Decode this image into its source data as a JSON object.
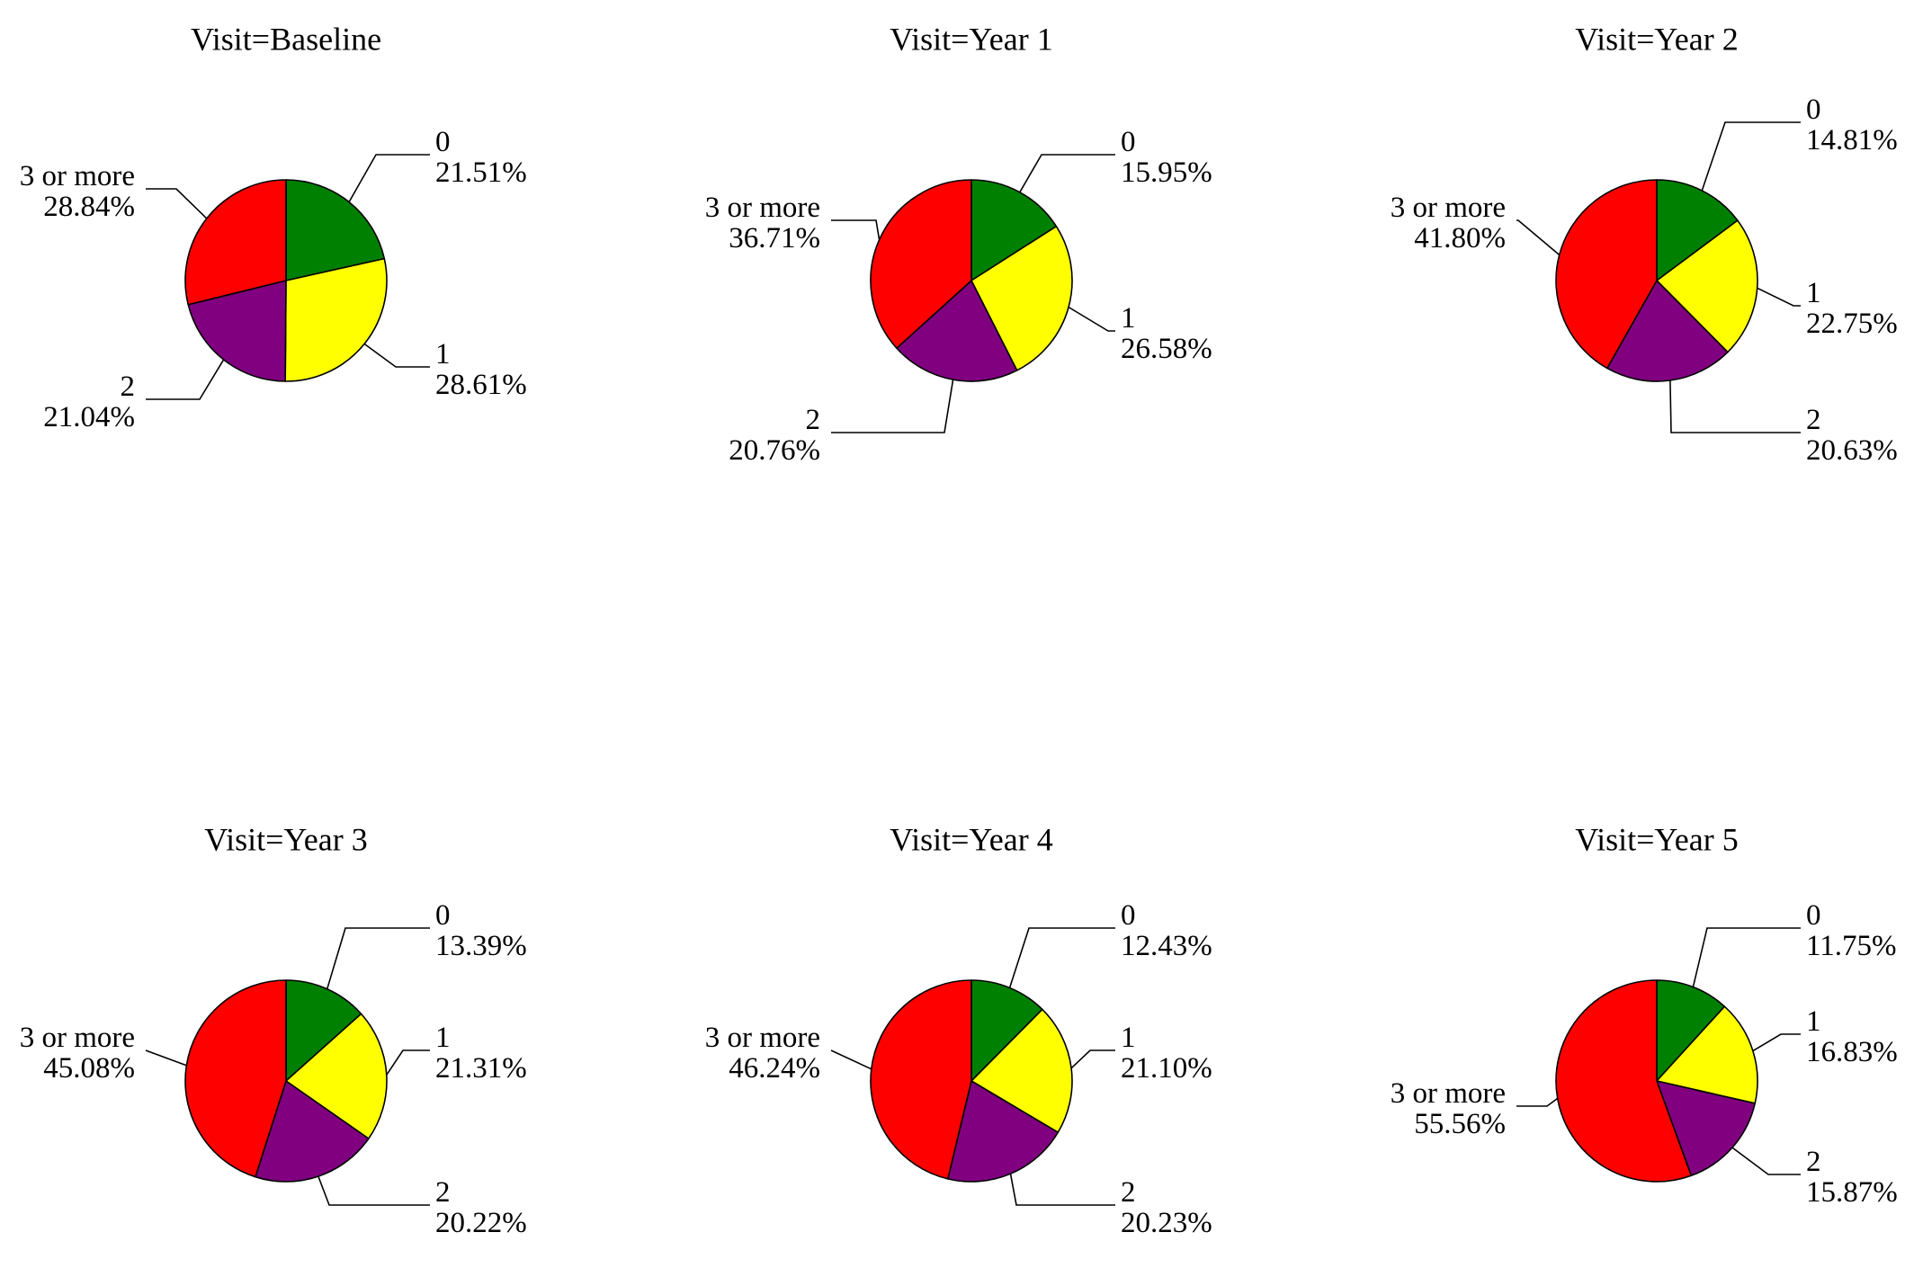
{
  "chart_data": [
    {
      "type": "pie",
      "title": "Visit=Baseline",
      "categories": [
        "0",
        "1",
        "2",
        "3 or more"
      ],
      "values": [
        21.51,
        28.61,
        21.04,
        28.84
      ],
      "value_labels": [
        "21.51%",
        "28.61%",
        "21.04%",
        "28.84%"
      ]
    },
    {
      "type": "pie",
      "title": "Visit=Year 1",
      "categories": [
        "0",
        "1",
        "2",
        "3 or more"
      ],
      "values": [
        15.95,
        26.58,
        20.76,
        36.71
      ],
      "value_labels": [
        "15.95%",
        "26.58%",
        "20.76%",
        "36.71%"
      ]
    },
    {
      "type": "pie",
      "title": "Visit=Year 2",
      "categories": [
        "0",
        "1",
        "2",
        "3 or more"
      ],
      "values": [
        14.81,
        22.75,
        20.63,
        41.8
      ],
      "value_labels": [
        "14.81%",
        "22.75%",
        "20.63%",
        "41.80%"
      ]
    },
    {
      "type": "pie",
      "title": "Visit=Year 3",
      "categories": [
        "0",
        "1",
        "2",
        "3 or more"
      ],
      "values": [
        13.39,
        21.31,
        20.22,
        45.08
      ],
      "value_labels": [
        "13.39%",
        "21.31%",
        "20.22%",
        "45.08%"
      ]
    },
    {
      "type": "pie",
      "title": "Visit=Year 4",
      "categories": [
        "0",
        "1",
        "2",
        "3 or more"
      ],
      "values": [
        12.43,
        21.1,
        20.23,
        46.24
      ],
      "value_labels": [
        "12.43%",
        "21.10%",
        "20.23%",
        "46.24%"
      ]
    },
    {
      "type": "pie",
      "title": "Visit=Year 5",
      "categories": [
        "0",
        "1",
        "2",
        "3 or more"
      ],
      "values": [
        11.75,
        16.83,
        15.87,
        55.56
      ],
      "value_labels": [
        "11.75%",
        "16.83%",
        "15.87%",
        "55.56%"
      ]
    }
  ],
  "colors": {
    "0": "#008000",
    "1": "#ffff00",
    "2": "#800080",
    "3 or more": "#ff0000"
  }
}
